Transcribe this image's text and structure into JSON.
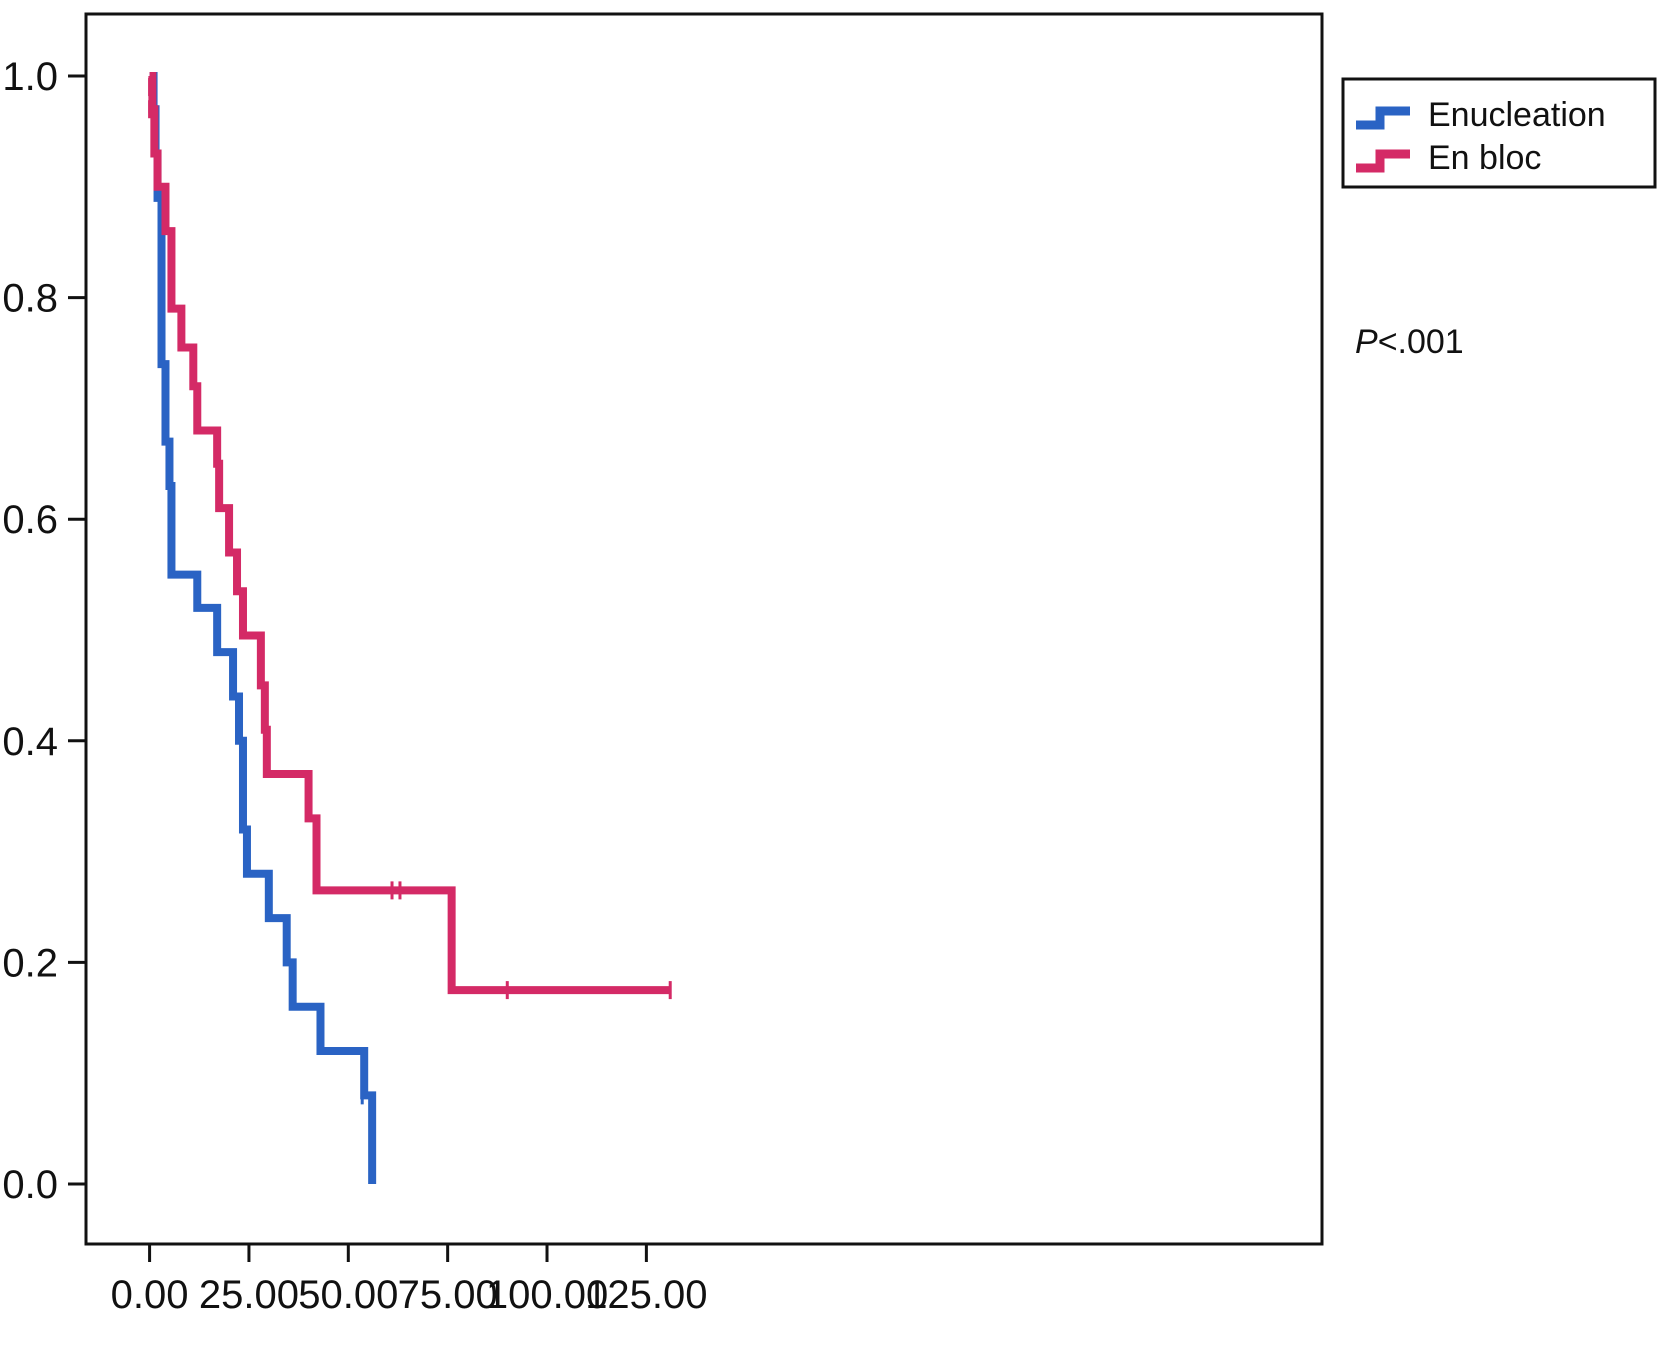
{
  "chart_data": {
    "type": "line",
    "step": true,
    "title": "",
    "xlabel": "",
    "ylabel": "",
    "xlim": [
      -16,
      295
    ],
    "ylim": [
      -0.11,
      1.0
    ],
    "x_ticks": [
      0,
      25,
      50,
      75,
      100,
      125
    ],
    "x_tick_labels": [
      "0.00",
      "25.00",
      "50.00",
      "75.00",
      "100.00",
      "125.00"
    ],
    "y_ticks": [
      0.0,
      0.2,
      0.4,
      0.6,
      0.8,
      1.0
    ],
    "y_tick_labels": [
      "0.0",
      "0.2",
      "0.4",
      "0.6",
      "0.8",
      "1.0"
    ],
    "grid": false,
    "legend_position": "top-right, outside plot",
    "annotation": {
      "italic": "P",
      "text": "<.001"
    },
    "series": [
      {
        "name": "Enucleation",
        "color": "#2a63c4",
        "points": [
          [
            0,
            1.0
          ],
          [
            1,
            0.97
          ],
          [
            1.5,
            0.93
          ],
          [
            2,
            0.89
          ],
          [
            3,
            0.74
          ],
          [
            4,
            0.67
          ],
          [
            5,
            0.63
          ],
          [
            5.5,
            0.55
          ],
          [
            12,
            0.52
          ],
          [
            17,
            0.48
          ],
          [
            21,
            0.44
          ],
          [
            22.5,
            0.4
          ],
          [
            23.5,
            0.32
          ],
          [
            24.5,
            0.28
          ],
          [
            30,
            0.24
          ],
          [
            34.5,
            0.2
          ],
          [
            36,
            0.16
          ],
          [
            43,
            0.12
          ],
          [
            54,
            0.08
          ],
          [
            56,
            0.0
          ]
        ],
        "censored": [
          [
            53.5,
            0.08
          ]
        ]
      },
      {
        "name": "En bloc",
        "color": "#d42a66",
        "points": [
          [
            0,
            1.0
          ],
          [
            0.7,
            0.97
          ],
          [
            1.2,
            0.93
          ],
          [
            2,
            0.9
          ],
          [
            4,
            0.86
          ],
          [
            5.5,
            0.79
          ],
          [
            8,
            0.755
          ],
          [
            11,
            0.72
          ],
          [
            12,
            0.68
          ],
          [
            17,
            0.65
          ],
          [
            17.5,
            0.61
          ],
          [
            20,
            0.57
          ],
          [
            22,
            0.535
          ],
          [
            23.5,
            0.495
          ],
          [
            28,
            0.45
          ],
          [
            29,
            0.41
          ],
          [
            29.5,
            0.37
          ],
          [
            40,
            0.33
          ],
          [
            42,
            0.265
          ],
          [
            76,
            0.175
          ],
          [
            131,
            0.175
          ]
        ],
        "censored": [
          [
            0,
            0.97
          ],
          [
            0,
            0.99
          ],
          [
            61,
            0.265
          ],
          [
            63,
            0.265
          ],
          [
            90,
            0.175
          ],
          [
            131,
            0.175
          ]
        ]
      }
    ]
  }
}
